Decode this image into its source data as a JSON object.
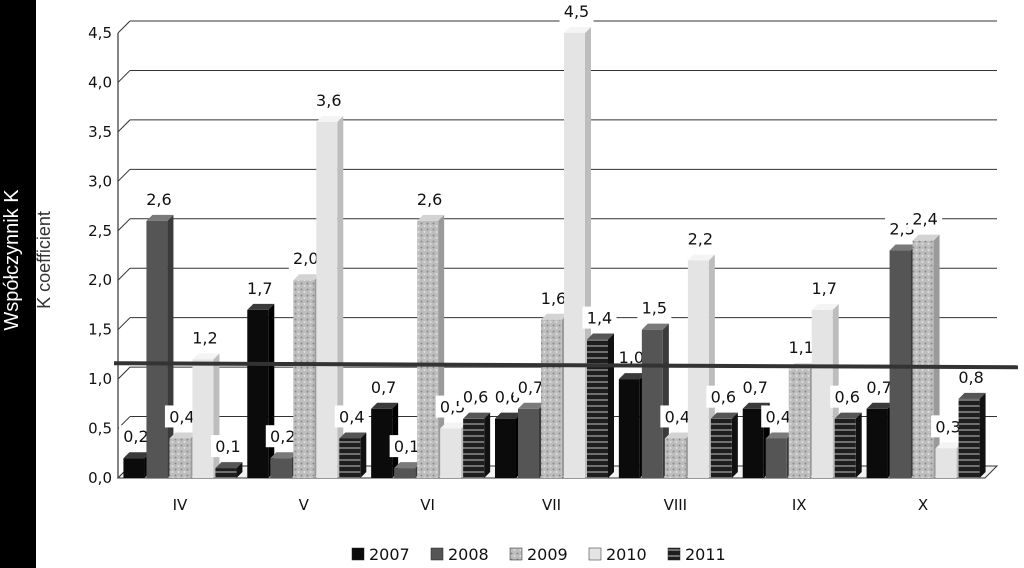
{
  "chart_data": {
    "type": "bar",
    "categories": [
      "IV",
      "V",
      "VI",
      "VII",
      "VIII",
      "IX",
      "X"
    ],
    "series": [
      {
        "name": "2007",
        "values": [
          0.2,
          1.7,
          0.7,
          0.6,
          1.0,
          0.7,
          0.7
        ],
        "color": "#0b0b0b"
      },
      {
        "name": "2008",
        "values": [
          2.6,
          0.2,
          0.1,
          0.7,
          1.5,
          0.4,
          2.3
        ],
        "color": "#555555"
      },
      {
        "name": "2009",
        "values": [
          0.4,
          2.0,
          2.6,
          1.6,
          0.4,
          1.1,
          2.4
        ],
        "color": "#b5b5b5"
      },
      {
        "name": "2010",
        "values": [
          1.2,
          3.6,
          0.5,
          4.5,
          2.2,
          1.7,
          0.3
        ],
        "color": "#e6e6e6"
      },
      {
        "name": "2011",
        "values": [
          0.1,
          0.4,
          0.6,
          1.4,
          0.6,
          0.6,
          0.8
        ],
        "color": "#2b2b2b"
      }
    ],
    "data_labels": [
      [
        "0,2",
        "2,6",
        "0,4",
        "1,2",
        "0,1"
      ],
      [
        "1,7",
        "0,2",
        "2,0",
        "3,6",
        "0,4"
      ],
      [
        "0,7",
        "0,1",
        "2,6",
        "0,5",
        "0,6"
      ],
      [
        "0,6",
        "0,7",
        "1,6",
        "4,5",
        "1,4"
      ],
      [
        "1,0",
        "1,5",
        "0,4",
        "2,2",
        "0,6"
      ],
      [
        "0,7",
        "0,4",
        "1,1",
        "1,7",
        "0,6"
      ],
      [
        "0,7",
        "2,3",
        "2,4",
        "0,3",
        "0,8"
      ]
    ],
    "yticks": [
      "0,0",
      "0,5",
      "1,0",
      "1,5",
      "2,0",
      "2,5",
      "3,0",
      "3,5",
      "4,0",
      "4,5"
    ],
    "ylim": [
      0,
      4.5
    ],
    "reference_line": 1.1,
    "ylabel_pl": "Współczynnik K",
    "ylabel_en": "K coefficient",
    "xlabel": "",
    "title": "",
    "grid": true,
    "legend_position": "bottom"
  }
}
